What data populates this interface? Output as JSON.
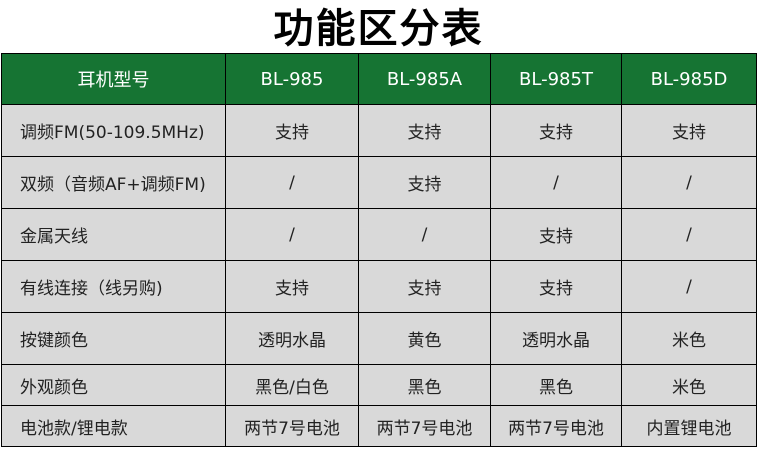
{
  "title": "功能区分表",
  "colors": {
    "header_bg": "#167433",
    "cell_bg": "#d9d9d9"
  },
  "header": [
    "耳机型号",
    "BL-985",
    "BL-985A",
    "BL-985T",
    "BL-985D"
  ],
  "rows": [
    [
      "调频FM(50-109.5MHz)",
      "支持",
      "支持",
      "支持",
      "支持"
    ],
    [
      "双频（音频AF+调频FM)",
      "/",
      "支持",
      "/",
      "/"
    ],
    [
      "金属天线",
      "/",
      "/",
      "支持",
      "/"
    ],
    [
      "有线连接（线另购)",
      "支持",
      "支持",
      "支持",
      "/"
    ],
    [
      "按键颜色",
      "透明水晶",
      "黄色",
      "透明水晶",
      "米色"
    ],
    [
      "外观颜色",
      "黑色/白色",
      "黑色",
      "黑色",
      "米色"
    ],
    [
      "电池款/锂电款",
      "两节7号电池",
      "两节7号电池",
      "两节7号电池",
      "内置锂电池"
    ]
  ]
}
